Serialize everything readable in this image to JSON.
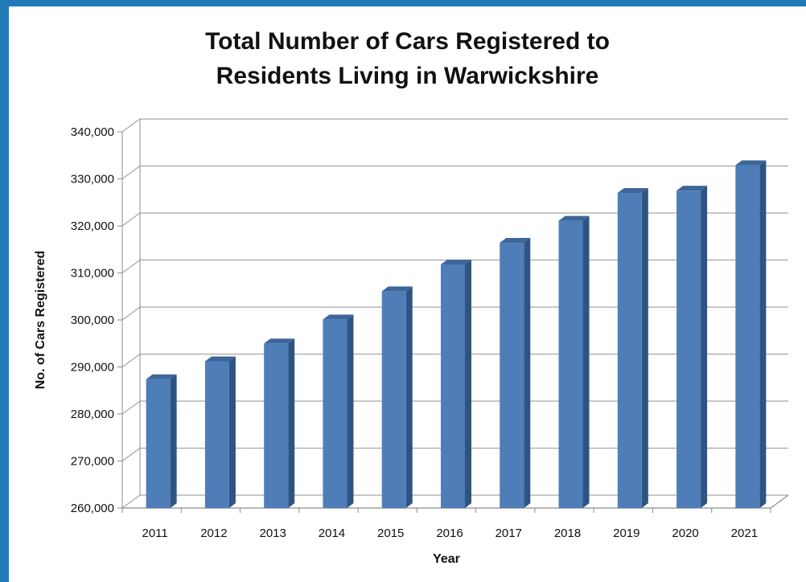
{
  "chart_data": {
    "type": "bar",
    "title": "Total Number of Cars Registered to Residents Living in Warwickshire",
    "title_lines": [
      "Total Number of Cars Registered to",
      "Residents Living in Warwickshire"
    ],
    "xlabel": "Year",
    "ylabel": "No. of Cars Registered",
    "categories": [
      "2011",
      "2012",
      "2013",
      "2014",
      "2015",
      "2016",
      "2017",
      "2018",
      "2019",
      "2020",
      "2021"
    ],
    "values": [
      287400,
      291200,
      295000,
      300100,
      306100,
      311800,
      316400,
      321100,
      327000,
      327500,
      332900
    ],
    "ylim": [
      260000,
      340000
    ],
    "yticks": [
      260000,
      270000,
      280000,
      290000,
      300000,
      310000,
      320000,
      330000,
      340000
    ],
    "ytick_labels": [
      "260,000",
      "270,000",
      "280,000",
      "290,000",
      "300,000",
      "310,000",
      "320,000",
      "330,000",
      "340,000"
    ],
    "grid": true,
    "legend": "none",
    "style": "3d-column",
    "colors": {
      "bar_front": "#4f7db8",
      "bar_side": "#2e5482",
      "bar_top": "#3d6699",
      "gridline": "#a6a6a6",
      "frame_border": "#1f7ab5"
    }
  }
}
